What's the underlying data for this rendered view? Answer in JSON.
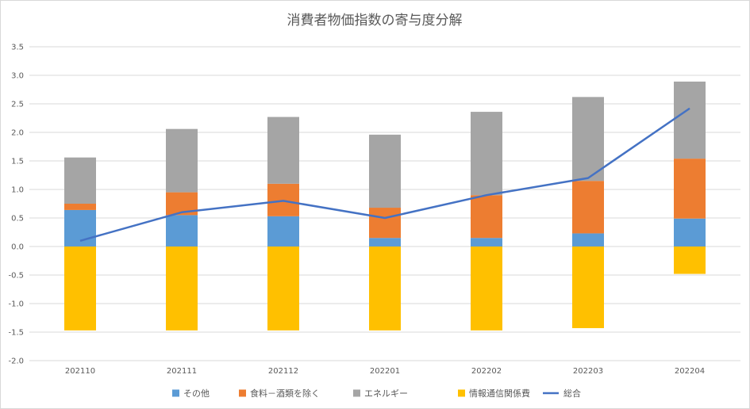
{
  "chart_data": {
    "type": "bar",
    "stacked": true,
    "title": "消費者物価指数の寄与度分解",
    "xlabel": "",
    "ylabel": "",
    "categories": [
      "202110",
      "202111",
      "202112",
      "202201",
      "202202",
      "202203",
      "202204"
    ],
    "ylim": [
      -2.0,
      3.5
    ],
    "yticks": [
      "3.5",
      "3.0",
      "2.5",
      "2.0",
      "1.5",
      "1.0",
      "0.5",
      "0.0",
      "-0.5",
      "-1.0",
      "-1.5",
      "-2.0"
    ],
    "grid": true,
    "legend_position": "bottom",
    "series": [
      {
        "name": "その他",
        "type": "bar",
        "color": "#5b9bd5",
        "values": [
          0.64,
          0.55,
          0.53,
          0.15,
          0.15,
          0.23,
          0.49
        ]
      },
      {
        "name": "食料－酒類を除く",
        "type": "bar",
        "color": "#ed7d31",
        "values": [
          0.11,
          0.4,
          0.57,
          0.53,
          0.75,
          0.92,
          1.05
        ]
      },
      {
        "name": "エネルギー",
        "type": "bar",
        "color": "#a5a5a5",
        "values": [
          0.81,
          1.11,
          1.17,
          1.28,
          1.46,
          1.47,
          1.35
        ]
      },
      {
        "name": "情報通信関係費",
        "type": "bar",
        "color": "#ffc000",
        "values": [
          -1.47,
          -1.47,
          -1.47,
          -1.47,
          -1.47,
          -1.43,
          -0.48
        ]
      },
      {
        "name": "総合",
        "type": "line",
        "color": "#4472c4",
        "values": [
          0.1,
          0.6,
          0.8,
          0.5,
          0.9,
          1.2,
          2.42
        ]
      }
    ]
  }
}
